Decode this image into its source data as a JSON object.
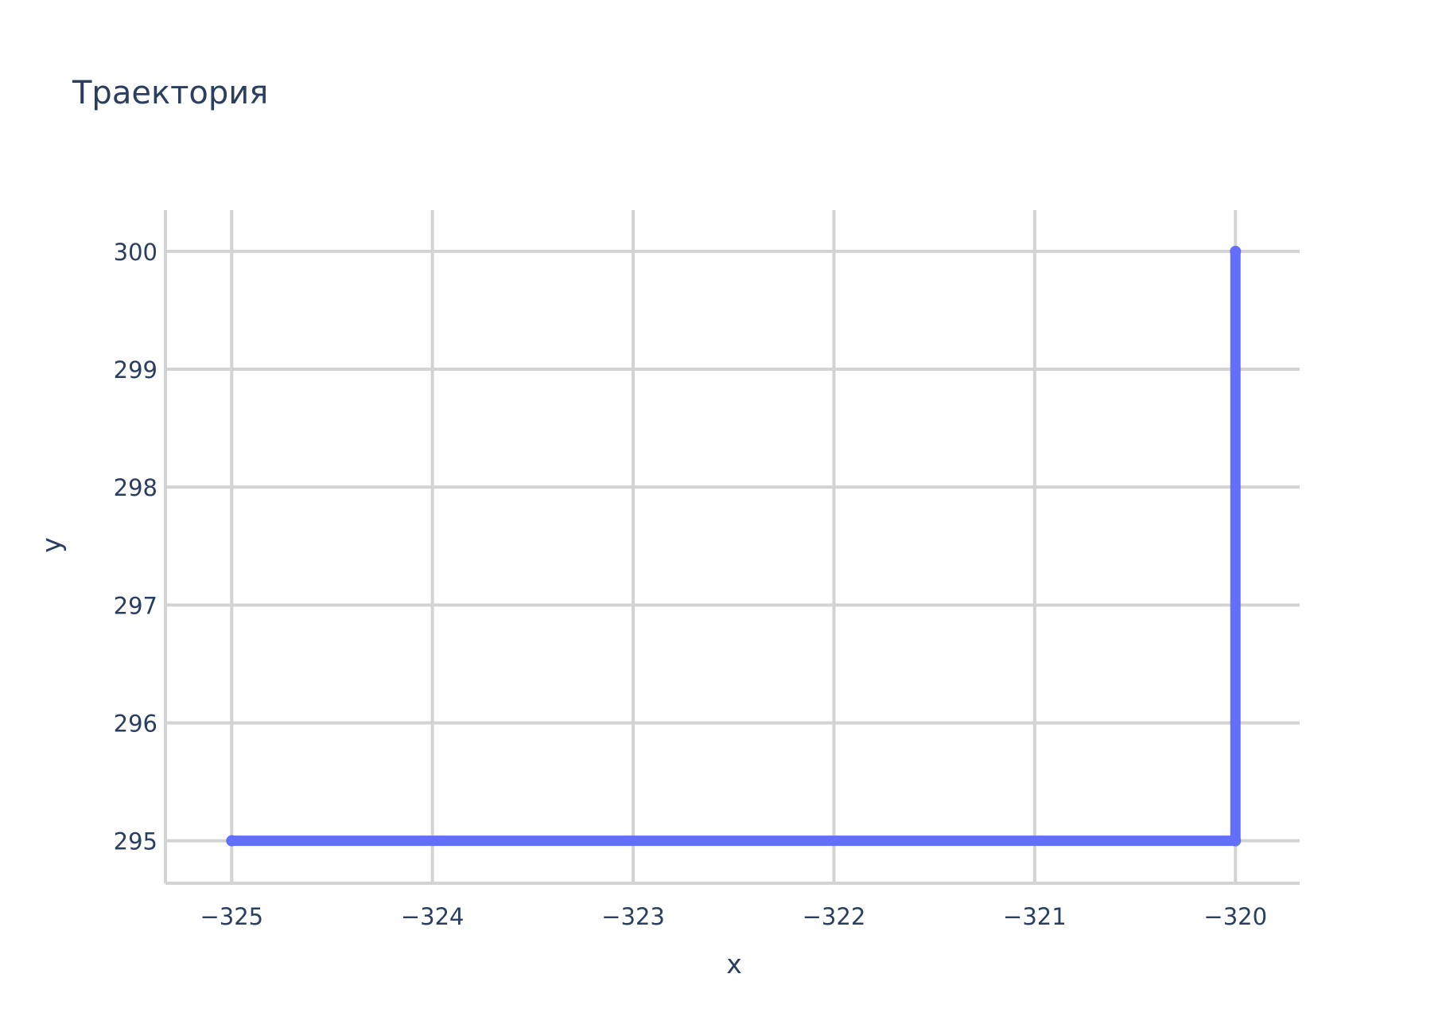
{
  "chart_data": {
    "type": "line",
    "title": "Траектория",
    "xlabel": "x",
    "ylabel": "y",
    "xlim": [
      -325.33,
      -319.68
    ],
    "ylim": [
      294.64,
      300.35
    ],
    "x_ticks": [
      -325,
      -324,
      -323,
      -322,
      -321,
      -320
    ],
    "y_ticks": [
      295,
      296,
      297,
      298,
      299,
      300
    ],
    "x_tick_labels": [
      "−325",
      "−324",
      "−323",
      "−322",
      "−321",
      "−320"
    ],
    "y_tick_labels": [
      "295",
      "296",
      "297",
      "298",
      "299",
      "300"
    ],
    "grid": true,
    "series": [
      {
        "x": [
          -320,
          -320,
          -325
        ],
        "y": [
          300,
          295,
          295
        ],
        "color": "#636efa"
      }
    ],
    "colors": {
      "line": "#636efa",
      "grid": "#d3d3d3",
      "text": "#2a3f5f",
      "background": "#ffffff"
    }
  }
}
